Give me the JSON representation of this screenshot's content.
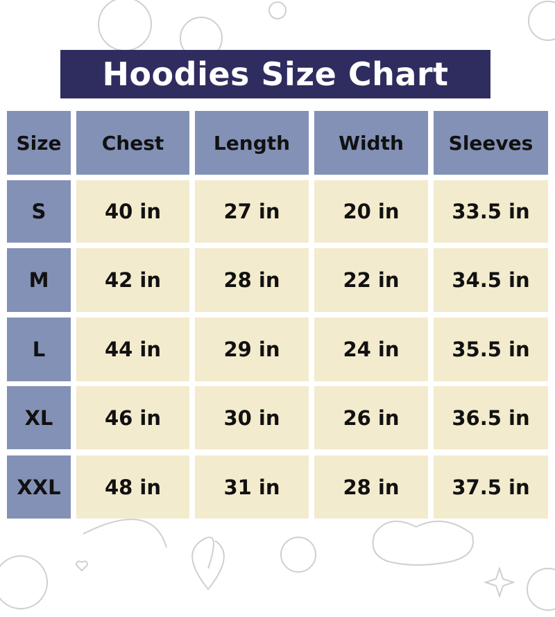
{
  "title": "Hoodies Size Chart",
  "colors": {
    "title_bg": "#2f2d5f",
    "header_bg": "#8391b6",
    "cell_bg": "#f3ebcd",
    "text": "#111111",
    "doodle": "#d9d9d9"
  },
  "table": {
    "headers": [
      "Size",
      "Chest",
      "Length",
      "Width",
      "Sleeves"
    ],
    "rows": [
      [
        "S",
        "40 in",
        "27 in",
        "20 in",
        "33.5 in"
      ],
      [
        "M",
        "42 in",
        "28 in",
        "22 in",
        "34.5 in"
      ],
      [
        "L",
        "44 in",
        "29 in",
        "24 in",
        "35.5 in"
      ],
      [
        "XL",
        "46 in",
        "30 in",
        "26 in",
        "36.5 in"
      ],
      [
        "XXL",
        "48 in",
        "31 in",
        "28 in",
        "37.5 in"
      ]
    ]
  }
}
